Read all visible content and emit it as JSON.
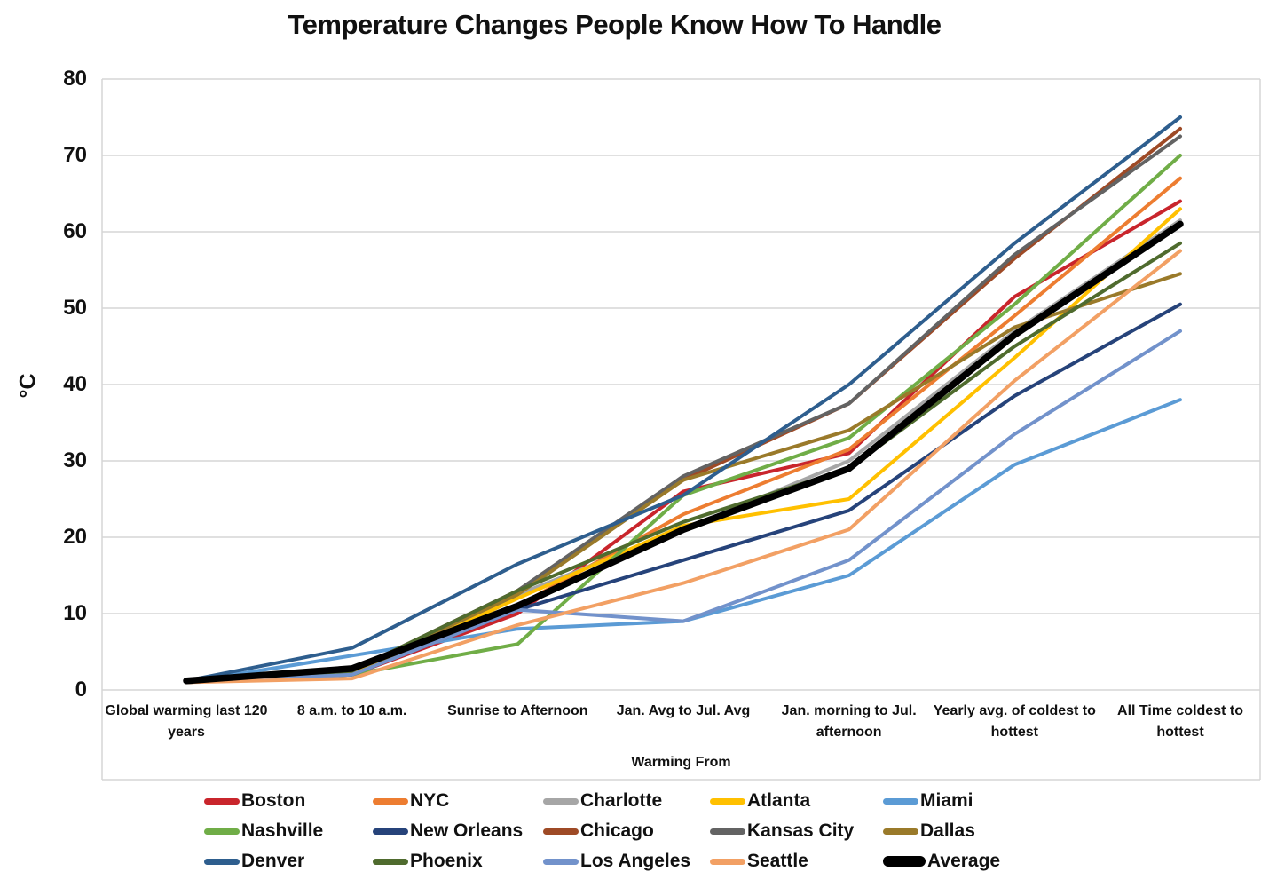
{
  "chart_data": {
    "type": "line",
    "title": "Temperature Changes People Know How To Handle",
    "ylabel": "°C",
    "xlabel": "Warming From",
    "ylim": [
      0,
      80
    ],
    "yticks": [
      0,
      10,
      20,
      30,
      40,
      50,
      60,
      70,
      80
    ],
    "grid": "horizontal",
    "gridline_color": "#d6d6d6",
    "legend_position": "bottom",
    "legend_columns": 5,
    "categories": [
      "Global warming last 120 years",
      "8 a.m. to 10 a.m.",
      "Sunrise to Afternoon",
      "Jan. Avg to Jul. Avg",
      "Jan. morning to Jul. afternoon",
      "Yearly avg. of coldest to hottest",
      "All Time coldest to hottest"
    ],
    "series": [
      {
        "name": "Boston",
        "color": "#C9252C",
        "line_width": 4,
        "values": [
          1,
          2,
          10,
          26,
          31,
          51.5,
          64
        ]
      },
      {
        "name": "NYC",
        "color": "#ED7D31",
        "line_width": 4,
        "values": [
          1,
          2,
          11,
          23,
          31.5,
          49,
          67
        ]
      },
      {
        "name": "Charlotte",
        "color": "#A6A6A6",
        "line_width": 4,
        "values": [
          1,
          2.5,
          12.5,
          21,
          30,
          47,
          61.5
        ]
      },
      {
        "name": "Atlanta",
        "color": "#FFC000",
        "line_width": 4,
        "values": [
          1,
          2,
          12,
          21.5,
          25,
          43.5,
          63
        ]
      },
      {
        "name": "Miami",
        "color": "#5B9BD5",
        "line_width": 4,
        "values": [
          1,
          4.5,
          8,
          9,
          15,
          29.5,
          38
        ]
      },
      {
        "name": "Nashville",
        "color": "#70AD47",
        "line_width": 4,
        "values": [
          1,
          2,
          6,
          25.5,
          33,
          50.5,
          70
        ]
      },
      {
        "name": "New Orleans",
        "color": "#26437A",
        "line_width": 4,
        "values": [
          1,
          2,
          10.5,
          17,
          23.5,
          38.5,
          50.5
        ]
      },
      {
        "name": "Chicago",
        "color": "#9E4A26",
        "line_width": 4,
        "values": [
          1,
          2.5,
          13,
          27.5,
          37.5,
          56.5,
          73.5
        ]
      },
      {
        "name": "Kansas City",
        "color": "#636363",
        "line_width": 4,
        "values": [
          1,
          2.5,
          13,
          28,
          37.5,
          57,
          72.5
        ]
      },
      {
        "name": "Dallas",
        "color": "#9A7A2A",
        "line_width": 4,
        "values": [
          1,
          2.5,
          12.5,
          27.5,
          34,
          47.5,
          54.5
        ]
      },
      {
        "name": "Denver",
        "color": "#2E5E8E",
        "line_width": 4,
        "values": [
          1.2,
          5.5,
          16.5,
          25.5,
          40,
          58.5,
          75
        ]
      },
      {
        "name": "Phoenix",
        "color": "#4F6B2E",
        "line_width": 4,
        "values": [
          1,
          2.5,
          13,
          22,
          29,
          45,
          58.5
        ]
      },
      {
        "name": "Los Angeles",
        "color": "#7292CB",
        "line_width": 4,
        "values": [
          1,
          2,
          10.5,
          9,
          17,
          33.5,
          47
        ]
      },
      {
        "name": "Seattle",
        "color": "#F2A064",
        "line_width": 4,
        "values": [
          1,
          1.5,
          8.5,
          14,
          21,
          40.5,
          57.5
        ]
      },
      {
        "name": "Average",
        "color": "#000000",
        "line_width": 7.5,
        "values": [
          1.2,
          2.8,
          11,
          21,
          29,
          46.5,
          61
        ]
      }
    ]
  }
}
